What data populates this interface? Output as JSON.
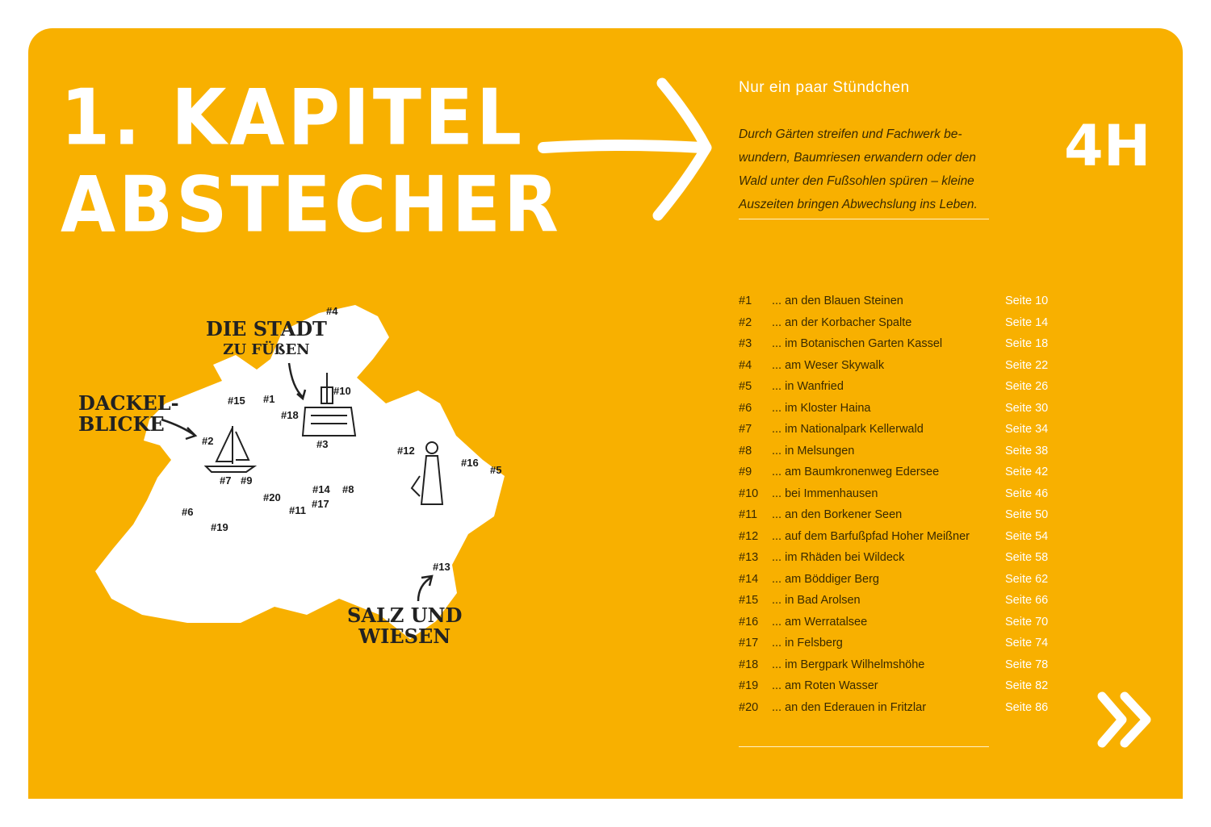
{
  "chapter": {
    "line1": "1. KAPITEL",
    "line2": "ABSTECHER"
  },
  "subtitle": "Nur ein paar Stündchen",
  "intro": "Durch Gärten streifen und Fachwerk be­wundern, Baumriesen erwandern oder den Wald unter den Fußsohlen spüren – kleine Auszeiten bringen Abwechslung ins Leben.",
  "hours": "4H",
  "colors": {
    "background": "#F8B000",
    "text_dark": "#3a2a00",
    "text_light": "#ffffff"
  },
  "icons": {
    "arrow": "arrow-right-icon",
    "next": "double-chevron-right-icon"
  },
  "map": {
    "annotations": {
      "stadt": [
        "DIE STADT",
        "ZU FÜßEN"
      ],
      "dackel": [
        "DACKEL-",
        "BLICKE"
      ],
      "salz": [
        "SALZ UND",
        "WIESEN"
      ]
    },
    "markers": [
      "#1",
      "#2",
      "#3",
      "#4",
      "#5",
      "#6",
      "#7",
      "#8",
      "#9",
      "#10",
      "#11",
      "#12",
      "#13",
      "#14",
      "#15",
      "#16",
      "#17",
      "#18",
      "#19",
      "#20"
    ]
  },
  "entries": [
    {
      "num": "#1",
      "place": "... an den Blauen Steinen",
      "page": "Seite 10"
    },
    {
      "num": "#2",
      "place": "... an der Korbacher Spalte",
      "page": "Seite 14"
    },
    {
      "num": "#3",
      "place": "... im Botanischen Garten Kassel",
      "page": "Seite 18"
    },
    {
      "num": "#4",
      "place": "... am Weser Skywalk",
      "page": "Seite 22"
    },
    {
      "num": "#5",
      "place": "... in Wanfried",
      "page": "Seite 26"
    },
    {
      "num": "#6",
      "place": "... im Kloster Haina",
      "page": "Seite 30"
    },
    {
      "num": "#7",
      "place": "... im Nationalpark Kellerwald",
      "page": "Seite 34"
    },
    {
      "num": "#8",
      "place": "... in Melsungen",
      "page": "Seite 38"
    },
    {
      "num": "#9",
      "place": "... am Baumkronenweg Edersee",
      "page": "Seite 42"
    },
    {
      "num": "#10",
      "place": "... bei Immenhausen",
      "page": "Seite 46"
    },
    {
      "num": "#11",
      "place": "... an den Borkener Seen",
      "page": "Seite 50"
    },
    {
      "num": "#12",
      "place": "... auf dem Barfußpfad Hoher Meißner",
      "page": "Seite 54"
    },
    {
      "num": "#13",
      "place": "... im Rhäden bei Wildeck",
      "page": "Seite 58"
    },
    {
      "num": "#14",
      "place": "... am Böddiger Berg",
      "page": "Seite 62"
    },
    {
      "num": "#15",
      "place": "... in Bad Arolsen",
      "page": "Seite 66"
    },
    {
      "num": "#16",
      "place": "... am Werratalsee",
      "page": "Seite 70"
    },
    {
      "num": "#17",
      "place": "... in Felsberg",
      "page": "Seite 74"
    },
    {
      "num": "#18",
      "place": "... im Bergpark Wilhelmshöhe",
      "page": "Seite 78"
    },
    {
      "num": "#19",
      "place": "... am Roten Wasser",
      "page": "Seite 82"
    },
    {
      "num": "#20",
      "place": "... an den Ederauen in Fritzlar",
      "page": "Seite 86"
    }
  ]
}
